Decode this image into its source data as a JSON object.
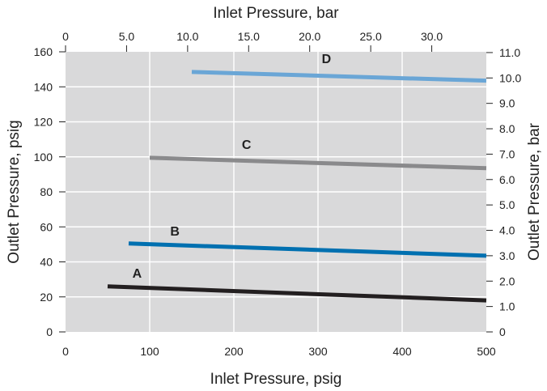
{
  "chart_data": {
    "type": "line",
    "xlabel": "Inlet Pressure, psig",
    "ylabel": "Outlet Pressure, psig",
    "x2label": "Inlet Pressure, bar",
    "y2label": "Outlet Pressure, bar",
    "xlim": [
      0,
      500
    ],
    "ylim": [
      0,
      160
    ],
    "xticks": [
      0,
      100,
      200,
      300,
      400,
      500
    ],
    "xtick_labels": [
      "0",
      "100",
      "200",
      "300",
      "400",
      "500"
    ],
    "yticks": [
      0,
      20,
      40,
      60,
      80,
      100,
      120,
      140,
      160
    ],
    "ytick_labels": [
      "0",
      "20",
      "40",
      "60",
      "80",
      "100",
      "120",
      "140",
      "160"
    ],
    "x2lim": [
      0,
      34.47
    ],
    "x2ticks": [
      0,
      5.0,
      10.0,
      15.0,
      20.0,
      25.0,
      30.0
    ],
    "x2tick_labels": [
      "0",
      "5.0",
      "10.0",
      "15.0",
      "20.0",
      "25.0",
      "30.0"
    ],
    "y2lim": [
      0,
      11.03
    ],
    "y2ticks": [
      0,
      1.0,
      2.0,
      3.0,
      4.0,
      5.0,
      6.0,
      7.0,
      8.0,
      9.0,
      10.0,
      11.0
    ],
    "y2tick_labels": [
      "0",
      "1.0",
      "2.0",
      "3.0",
      "4.0",
      "5.0",
      "6.0",
      "7.0",
      "8.0",
      "9.0",
      "10.0",
      "11.0"
    ],
    "grid": true,
    "background": "#d9d9da",
    "series": [
      {
        "name": "A",
        "color": "#231f20",
        "x": [
          50,
          500
        ],
        "y": [
          26,
          18
        ],
        "label_at": [
          85,
          31
        ]
      },
      {
        "name": "B",
        "color": "#0070b0",
        "x": [
          75,
          500
        ],
        "y": [
          50.5,
          43.5
        ],
        "label_at": [
          130,
          55
        ]
      },
      {
        "name": "C",
        "color": "#8a8a8c",
        "x": [
          100,
          500
        ],
        "y": [
          99.5,
          93.5
        ],
        "label_at": [
          215,
          104.5
        ]
      },
      {
        "name": "D",
        "color": "#6aa6d6",
        "x": [
          150,
          500
        ],
        "y": [
          148.5,
          143.5
        ],
        "label_at": [
          310,
          153.5
        ]
      }
    ]
  }
}
